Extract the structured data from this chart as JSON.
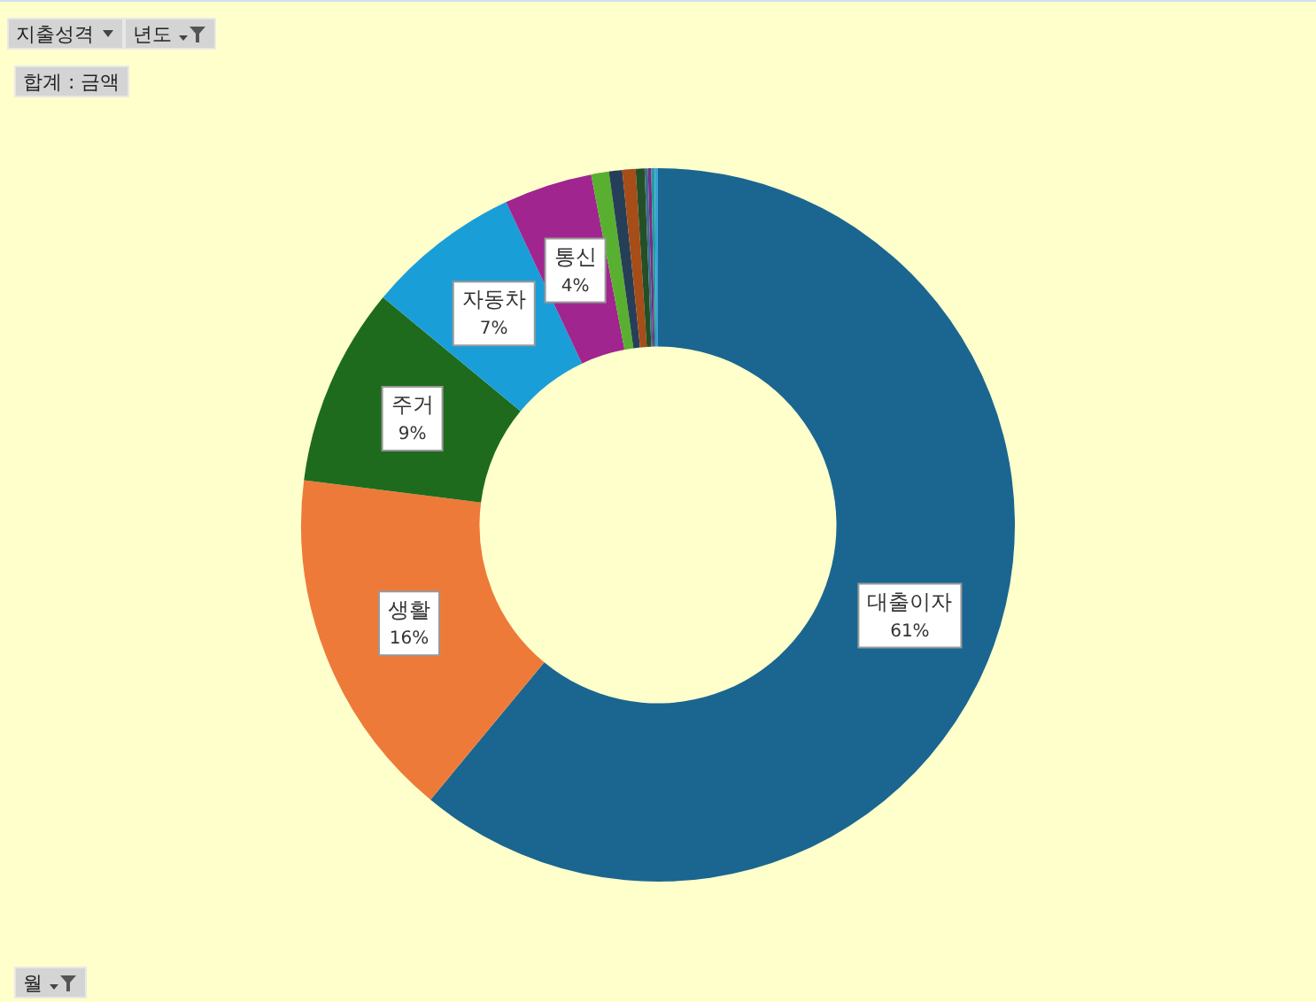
{
  "chart_data": {
    "type": "donut",
    "categories": [
      "대출이자",
      "생활",
      "주거",
      "자동차",
      "통신",
      null,
      null,
      null,
      null,
      null,
      null,
      null,
      null
    ],
    "values": [
      61,
      16,
      9,
      7,
      4,
      0.8,
      0.6,
      0.6,
      0.4,
      0.15,
      0.15,
      0.15,
      0.15
    ],
    "value_labels": [
      "61%",
      "16%",
      "9%",
      "7%",
      "4%",
      null,
      null,
      null,
      null,
      null,
      null,
      null,
      null
    ],
    "colors": [
      "#1a6690",
      "#ee7a3a",
      "#1e6b1e",
      "#1a9ed8",
      "#a0258f",
      "#59b030",
      "#263f58",
      "#a64d19",
      "#254f26",
      "#3b6c8f",
      "#7a2a86",
      "#1d9fa0",
      "#3aa0d8"
    ],
    "annotations": [
      "지출성격",
      "년도",
      "합계 : 금액",
      "월"
    ],
    "legend": false
  }
}
